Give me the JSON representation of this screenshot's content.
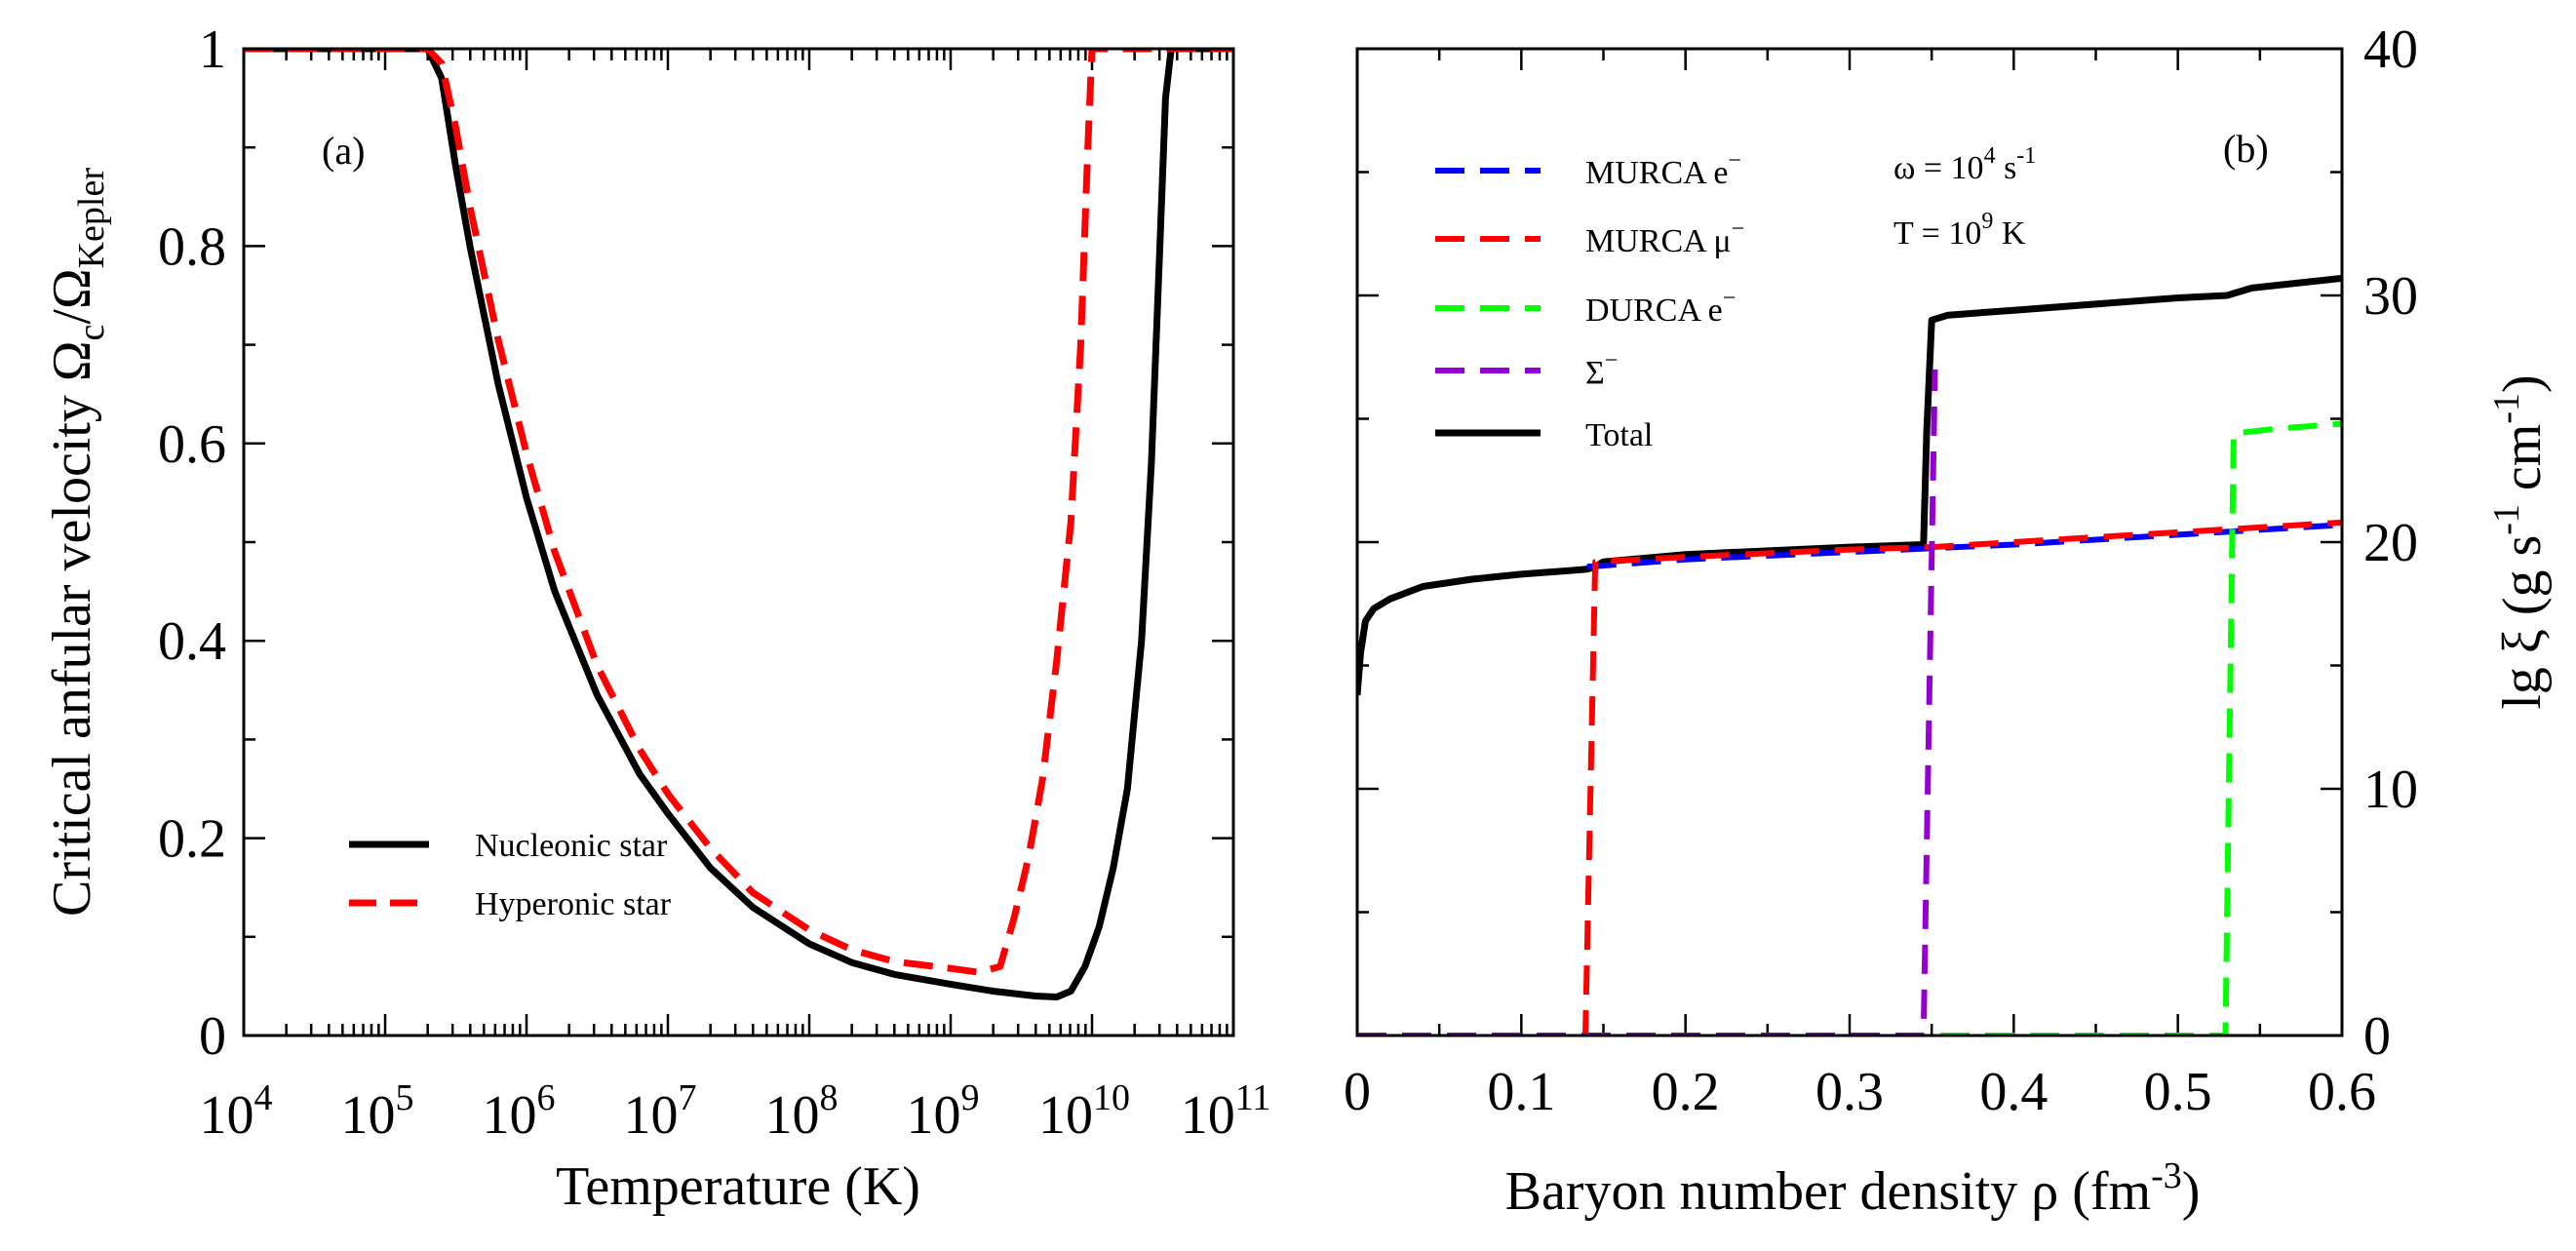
{
  "chart_data": [
    {
      "type": "line",
      "panel_label": "(a)",
      "xscale": "log",
      "xlabel": "Temperature (K)",
      "ylabel": {
        "main": "Critical anfular velocity Ω",
        "sub1": "c",
        "mid": "/Ω",
        "sub2": "Kepler"
      },
      "xlim": [
        10000,
        100000000000
      ],
      "ylim": [
        0,
        1
      ],
      "x_ticks": [
        {
          "base": "10",
          "exp": "4",
          "value": 10000
        },
        {
          "base": "10",
          "exp": "5",
          "value": 100000
        },
        {
          "base": "10",
          "exp": "6",
          "value": 1000000
        },
        {
          "base": "10",
          "exp": "7",
          "value": 10000000
        },
        {
          "base": "10",
          "exp": "8",
          "value": 100000000
        },
        {
          "base": "10",
          "exp": "9",
          "value": 1000000000
        },
        {
          "base": "10",
          "exp": "10",
          "value": 10000000000
        },
        {
          "base": "10",
          "exp": "11",
          "value": 100000000000
        }
      ],
      "y_ticks": [
        {
          "label": "0",
          "value": 0
        },
        {
          "label": "0.2",
          "value": 0.2
        },
        {
          "label": "0.4",
          "value": 0.4
        },
        {
          "label": "0.6",
          "value": 0.6
        },
        {
          "label": "0.8",
          "value": 0.8
        },
        {
          "label": "1",
          "value": 1
        }
      ],
      "legend": {
        "position": "bottom-left"
      },
      "series": [
        {
          "name": "Nucleonic star",
          "color": "#000000",
          "style": "solid",
          "x_log10": [
            4,
            5.3,
            5.4,
            5.5,
            5.6,
            5.8,
            6.0,
            6.2,
            6.5,
            6.8,
            7.0,
            7.3,
            7.6,
            8.0,
            8.3,
            8.6,
            9.0,
            9.3,
            9.6,
            9.75,
            9.85,
            9.95,
            10.05,
            10.15,
            10.25,
            10.35,
            10.42,
            10.48,
            10.52,
            10.56,
            11
          ],
          "y": [
            1,
            1,
            0.97,
            0.88,
            0.8,
            0.66,
            0.545,
            0.45,
            0.345,
            0.265,
            0.225,
            0.17,
            0.13,
            0.093,
            0.074,
            0.062,
            0.052,
            0.045,
            0.04,
            0.039,
            0.045,
            0.07,
            0.11,
            0.17,
            0.25,
            0.4,
            0.58,
            0.8,
            0.95,
            1,
            1
          ]
        },
        {
          "name": "Hyperonic star",
          "color": "#ff0000",
          "style": "dashed",
          "x_log10": [
            4,
            5.2,
            5.3,
            5.4,
            5.5,
            5.6,
            5.8,
            6.0,
            6.2,
            6.5,
            6.8,
            7.0,
            7.3,
            7.6,
            8.0,
            8.3,
            8.6,
            9.0,
            9.2,
            9.35,
            9.45,
            9.55,
            9.65,
            9.75,
            9.85,
            9.92,
            9.97,
            10.0,
            10.02,
            11
          ],
          "y": [
            1,
            1,
            1,
            0.985,
            0.92,
            0.84,
            0.705,
            0.59,
            0.49,
            0.375,
            0.29,
            0.245,
            0.19,
            0.145,
            0.107,
            0.087,
            0.075,
            0.068,
            0.064,
            0.07,
            0.12,
            0.18,
            0.26,
            0.38,
            0.52,
            0.7,
            0.9,
            1,
            1,
            1
          ]
        }
      ]
    },
    {
      "type": "line",
      "panel_label": "(b)",
      "xlabel": {
        "main": "Baryon number density ρ (fm",
        "exp": "-3",
        "close": ")"
      },
      "ylabel": {
        "part1": "lg ξ (g s",
        "exp1": "-1",
        "part2": " cm",
        "exp2": "-1",
        "part3": ")"
      },
      "y_axis_side": "right",
      "xlim": [
        0,
        0.6
      ],
      "ylim": [
        0,
        40
      ],
      "x_ticks": [
        {
          "label": "0",
          "value": 0
        },
        {
          "label": "0.1",
          "value": 0.1
        },
        {
          "label": "0.2",
          "value": 0.2
        },
        {
          "label": "0.3",
          "value": 0.3
        },
        {
          "label": "0.4",
          "value": 0.4
        },
        {
          "label": "0.5",
          "value": 0.5
        },
        {
          "label": "0.6",
          "value": 0.6
        }
      ],
      "y_ticks": [
        {
          "label": "0",
          "value": 0
        },
        {
          "label": "10",
          "value": 10
        },
        {
          "label": "20",
          "value": 20
        },
        {
          "label": "30",
          "value": 30
        },
        {
          "label": "40",
          "value": 40
        }
      ],
      "annotations": [
        {
          "lines": [
            {
              "text": "ω = 10",
              "exp": "4",
              "tail": " s"
            },
            {
              "exp": "-1"
            }
          ]
        },
        {
          "lines": [
            {
              "text": "T = 10",
              "exp": "9",
              "tail": " K"
            }
          ]
        }
      ],
      "legend": {
        "position": "top-left"
      },
      "series": [
        {
          "name": "MURCA e",
          "name_sup": "−",
          "color": "#0000ff",
          "style": "dashed",
          "x": [
            0.14,
            0.2,
            0.3,
            0.4,
            0.5,
            0.6
          ],
          "y": [
            19.0,
            19.3,
            19.6,
            19.9,
            20.3,
            20.7
          ]
        },
        {
          "name": "MURCA μ",
          "name_sup": "−",
          "color": "#ff0000",
          "style": "dashed",
          "x": [
            0,
            0.139,
            0.139,
            0.145,
            0.2,
            0.3,
            0.35,
            0.4,
            0.5,
            0.6
          ],
          "y": [
            0,
            0,
            0,
            19.2,
            19.4,
            19.7,
            19.8,
            20.0,
            20.4,
            20.8
          ]
        },
        {
          "name": "DURCA e",
          "name_sup": "−",
          "color": "#00ff00",
          "style": "dashed",
          "x": [
            0,
            0.529,
            0.529,
            0.534,
            0.56,
            0.6
          ],
          "y": [
            0,
            0,
            0,
            24.4,
            24.6,
            24.8
          ]
        },
        {
          "name": "Σ",
          "name_sup": "−",
          "color": "#9400d3",
          "style": "dashed",
          "x": [
            0,
            0.345,
            0.345,
            0.352
          ],
          "y": [
            0,
            0,
            0,
            27
          ]
        },
        {
          "name": "Total",
          "color": "#000000",
          "style": "solid",
          "x": [
            0.0,
            0.002,
            0.005,
            0.01,
            0.02,
            0.04,
            0.07,
            0.1,
            0.13,
            0.14,
            0.145,
            0.15,
            0.2,
            0.3,
            0.345,
            0.347,
            0.35,
            0.36,
            0.4,
            0.5,
            0.53,
            0.545,
            0.6
          ],
          "y": [
            13.8,
            15.5,
            16.8,
            17.3,
            17.7,
            18.2,
            18.5,
            18.7,
            18.85,
            18.9,
            19.0,
            19.2,
            19.5,
            19.8,
            19.9,
            24.5,
            29.0,
            29.2,
            29.4,
            29.9,
            30.0,
            30.3,
            30.7
          ]
        }
      ]
    }
  ]
}
